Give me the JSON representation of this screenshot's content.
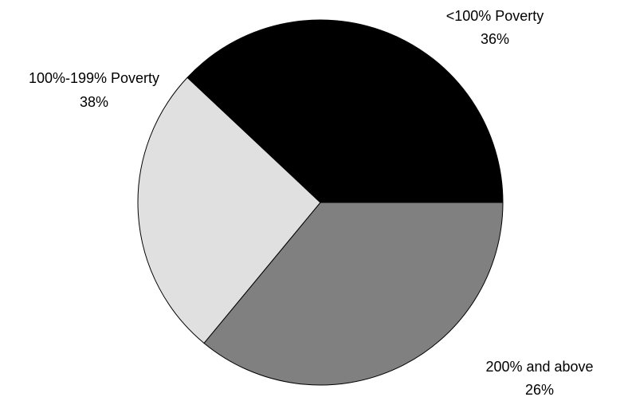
{
  "chart_data": {
    "type": "pie",
    "title": "",
    "slices": [
      {
        "label": "<100% Poverty",
        "value": 36,
        "percent_label": "36%",
        "color": "#808080"
      },
      {
        "label": "200% and above",
        "value": 26,
        "percent_label": "26%",
        "color": "#e0e0e0"
      },
      {
        "label": "100%-199% Poverty",
        "value": 38,
        "percent_label": "38%",
        "color": "#000000"
      }
    ],
    "start_angle_deg": 0,
    "direction": "clockwise",
    "outline_color": "#000000",
    "legend": "none",
    "labels_position": "outside"
  }
}
